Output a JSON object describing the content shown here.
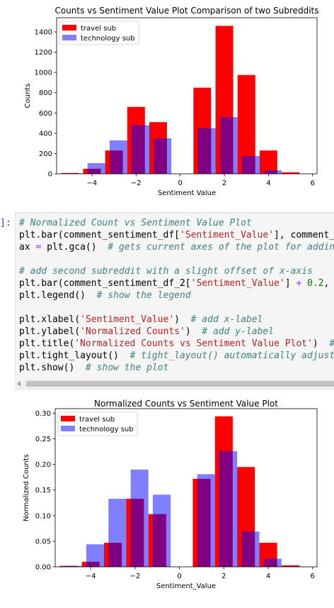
{
  "code_cell": {
    "prompt": "]:",
    "lines": [
      [
        {
          "t": "# Normalized Count vs Sentiment Value Plot",
          "c": "com"
        }
      ],
      [
        {
          "t": "plt.bar(comment_sentiment_df[",
          "c": "kw"
        },
        {
          "t": "'Sentiment_Value'",
          "c": "str"
        },
        {
          "t": "], comment_s",
          "c": "kw"
        }
      ],
      [
        {
          "t": "ax ",
          "c": "kw"
        },
        {
          "t": "=",
          "c": "op"
        },
        {
          "t": " plt.gca()  ",
          "c": "kw"
        },
        {
          "t": "# gets current axes of the plot for adding",
          "c": "com"
        }
      ],
      [],
      [
        {
          "t": "# add second subreddit with a slight offset of x-axis",
          "c": "com"
        }
      ],
      [
        {
          "t": "plt.bar(comment_sentiment_df_2[",
          "c": "kw"
        },
        {
          "t": "'Sentiment_Value'",
          "c": "str"
        },
        {
          "t": "] ",
          "c": "kw"
        },
        {
          "t": "+",
          "c": "op"
        },
        {
          "t": " ",
          "c": "kw"
        },
        {
          "t": "0.2",
          "c": "num"
        },
        {
          "t": ", c",
          "c": "kw"
        }
      ],
      [
        {
          "t": "plt.legend()  ",
          "c": "kw"
        },
        {
          "t": "# show the legend",
          "c": "com"
        }
      ],
      [],
      [
        {
          "t": "plt.xlabel(",
          "c": "kw"
        },
        {
          "t": "'Sentiment_Value'",
          "c": "str"
        },
        {
          "t": ")  ",
          "c": "kw"
        },
        {
          "t": "# add x-label",
          "c": "com"
        }
      ],
      [
        {
          "t": "plt.ylabel(",
          "c": "kw"
        },
        {
          "t": "'Normalized Counts'",
          "c": "str"
        },
        {
          "t": ")  ",
          "c": "kw"
        },
        {
          "t": "# add y-label",
          "c": "com"
        }
      ],
      [
        {
          "t": "plt.title(",
          "c": "kw"
        },
        {
          "t": "'Normalized Counts vs Sentiment Value Plot'",
          "c": "str"
        },
        {
          "t": ")  ",
          "c": "kw"
        },
        {
          "t": "#",
          "c": "com"
        }
      ],
      [
        {
          "t": "plt.tight_layout()  ",
          "c": "kw"
        },
        {
          "t": "# tight_layout() automatically adjusts",
          "c": "com"
        }
      ],
      [
        {
          "t": "plt.show()  ",
          "c": "kw"
        },
        {
          "t": "# show the plot",
          "c": "com"
        }
      ]
    ]
  },
  "chart_data": [
    {
      "type": "bar",
      "title": "Counts vs Sentiment Value Plot Comparison of two Subreddits",
      "xlabel": "Sentiment Value",
      "ylabel": "Counts",
      "xlim": [
        -5.6,
        6.2
      ],
      "ylim": [
        0,
        1540
      ],
      "xticks": [
        -4,
        -2,
        0,
        2,
        4,
        6
      ],
      "yticks": [
        0,
        200,
        400,
        600,
        800,
        1000,
        1200,
        1400
      ],
      "bar_width": 0.8,
      "legend_position": "upper-left",
      "series": [
        {
          "name": "travel sub",
          "color": "#ff0000",
          "opacity": 1.0,
          "x": [
            -5,
            -4,
            -3,
            -2,
            -1,
            1,
            2,
            3,
            4,
            5
          ],
          "values": [
            8,
            50,
            230,
            660,
            510,
            850,
            1460,
            975,
            230,
            15
          ]
        },
        {
          "name": "technology sub",
          "color": "#0000ff",
          "opacity": 0.5,
          "x": [
            -4.8,
            -3.8,
            -2.8,
            -1.8,
            -0.8,
            1.2,
            2.2,
            3.2,
            4.2,
            5.2
          ],
          "values": [
            5,
            105,
            330,
            480,
            350,
            450,
            560,
            175,
            35,
            3
          ]
        }
      ]
    },
    {
      "type": "bar",
      "title": "Normalized Counts vs Sentiment Value Plot",
      "xlabel": "Sentiment_Value",
      "ylabel": "Normalized Counts",
      "xlim": [
        -5.6,
        6.2
      ],
      "ylim": [
        0,
        0.309
      ],
      "xticks": [
        -4,
        -2,
        0,
        2,
        4,
        6
      ],
      "yticks": [
        0.0,
        0.05,
        0.1,
        0.15,
        0.2,
        0.25,
        0.3
      ],
      "ytick_labels": [
        "0.00",
        "0.05",
        "0.10",
        "0.15",
        "0.20",
        "0.25",
        "0.30"
      ],
      "bar_width": 0.8,
      "legend_position": "upper-left",
      "series": [
        {
          "name": "travel sub",
          "color": "#ff0000",
          "opacity": 1.0,
          "x": [
            -5,
            -4,
            -3,
            -2,
            -1,
            1,
            2,
            3,
            4,
            5
          ],
          "values": [
            0.002,
            0.01,
            0.047,
            0.133,
            0.103,
            0.172,
            0.294,
            0.195,
            0.047,
            0.003
          ]
        },
        {
          "name": "technology sub",
          "color": "#0000ff",
          "opacity": 0.5,
          "x": [
            -4.8,
            -3.8,
            -2.8,
            -1.8,
            -0.8,
            1.2,
            2.2,
            3.2,
            4.2,
            5.2
          ],
          "values": [
            0.002,
            0.044,
            0.133,
            0.19,
            0.141,
            0.181,
            0.226,
            0.069,
            0.016,
            0.001
          ]
        }
      ]
    }
  ]
}
